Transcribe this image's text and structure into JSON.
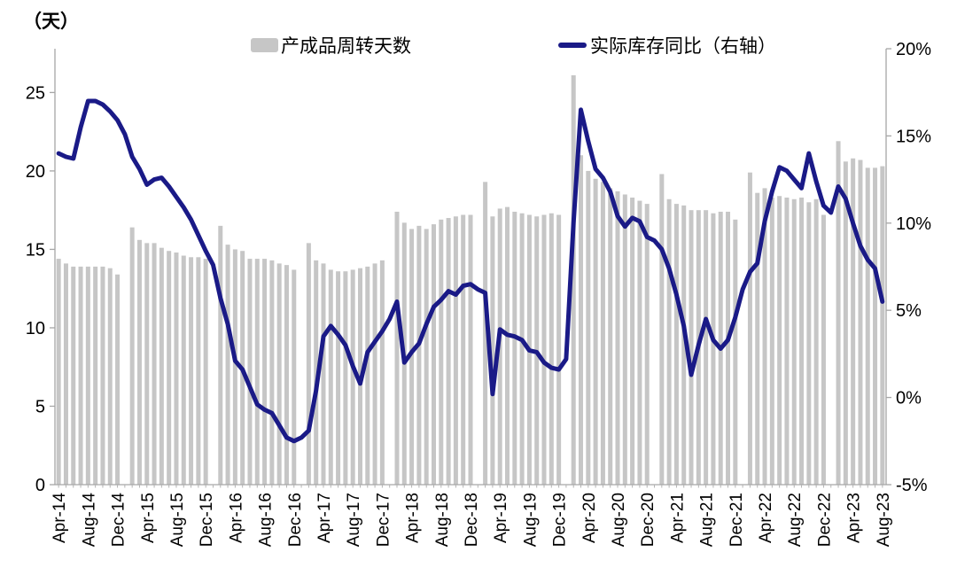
{
  "unit_label": "（天）",
  "colors": {
    "bar": "#c6c6c6",
    "line": "#1a1a87",
    "axis": "#a6a6a6",
    "text": "#000000"
  },
  "legend": [
    {
      "label": "产成品周转天数",
      "type": "bar",
      "color": "#c6c6c6"
    },
    {
      "label": "实际库存同比（右轴）",
      "type": "line",
      "color": "#1a1a87"
    }
  ],
  "chart_data": {
    "type": "bar+line combo, dual axis",
    "x_tick_every": 4,
    "left_axis": {
      "title": "（天）",
      "range": [
        0,
        27.8
      ],
      "ticks": [
        {
          "value": 0,
          "label": "0"
        },
        {
          "value": 5,
          "label": "5"
        },
        {
          "value": 10,
          "label": "10"
        },
        {
          "value": 15,
          "label": "15"
        },
        {
          "value": 20,
          "label": "20"
        },
        {
          "value": 25,
          "label": "25"
        }
      ]
    },
    "right_axis": {
      "range": [
        -5,
        20
      ],
      "ticks": [
        {
          "value": 20,
          "label": "20%"
        },
        {
          "value": 15,
          "label": "15%"
        },
        {
          "value": 10,
          "label": "10%"
        },
        {
          "value": 5,
          "label": "5%"
        },
        {
          "value": 0,
          "label": "0%"
        },
        {
          "value": -5,
          "label": "-5%"
        }
      ]
    },
    "months": [
      "Apr-14",
      "May-14",
      "Jun-14",
      "Jul-14",
      "Aug-14",
      "Sep-14",
      "Oct-14",
      "Nov-14",
      "Dec-14",
      "Jan-15",
      "Feb-15",
      "Mar-15",
      "Apr-15",
      "May-15",
      "Jun-15",
      "Jul-15",
      "Aug-15",
      "Sep-15",
      "Oct-15",
      "Nov-15",
      "Dec-15",
      "Jan-16",
      "Feb-16",
      "Mar-16",
      "Apr-16",
      "May-16",
      "Jun-16",
      "Jul-16",
      "Aug-16",
      "Sep-16",
      "Oct-16",
      "Nov-16",
      "Dec-16",
      "Jan-17",
      "Feb-17",
      "Mar-17",
      "Apr-17",
      "May-17",
      "Jun-17",
      "Jul-17",
      "Aug-17",
      "Sep-17",
      "Oct-17",
      "Nov-17",
      "Dec-17",
      "Jan-18",
      "Feb-18",
      "Mar-18",
      "Apr-18",
      "May-18",
      "Jun-18",
      "Jul-18",
      "Aug-18",
      "Sep-18",
      "Oct-18",
      "Nov-18",
      "Dec-18",
      "Jan-19",
      "Feb-19",
      "Mar-19",
      "Apr-19",
      "May-19",
      "Jun-19",
      "Jul-19",
      "Aug-19",
      "Sep-19",
      "Oct-19",
      "Nov-19",
      "Dec-19",
      "Jan-20",
      "Feb-20",
      "Mar-20",
      "Apr-20",
      "May-20",
      "Jun-20",
      "Jul-20",
      "Aug-20",
      "Sep-20",
      "Oct-20",
      "Nov-20",
      "Dec-20",
      "Jan-21",
      "Feb-21",
      "Mar-21",
      "Apr-21",
      "May-21",
      "Jun-21",
      "Jul-21",
      "Aug-21",
      "Sep-21",
      "Oct-21",
      "Nov-21",
      "Dec-21",
      "Jan-22",
      "Feb-22",
      "Mar-22",
      "Apr-22",
      "May-22",
      "Jun-22",
      "Jul-22",
      "Aug-22",
      "Sep-22",
      "Oct-22",
      "Nov-22",
      "Dec-22",
      "Jan-23",
      "Feb-23",
      "Mar-23",
      "Apr-23",
      "May-23",
      "Jun-23",
      "Jul-23",
      "Aug-23"
    ],
    "series": [
      {
        "name": "产成品周转天数",
        "type": "bar",
        "axis": "left",
        "unit": "天",
        "color": "#c6c6c6",
        "values": [
          14.4,
          14.1,
          13.9,
          13.9,
          13.9,
          13.9,
          13.9,
          13.8,
          13.4,
          null,
          16.4,
          15.6,
          15.4,
          15.4,
          15.1,
          14.9,
          14.8,
          14.6,
          14.5,
          14.5,
          14.4,
          null,
          16.5,
          15.3,
          15.0,
          14.9,
          14.4,
          14.4,
          14.4,
          14.3,
          14.1,
          14.0,
          13.7,
          null,
          15.4,
          14.3,
          14.1,
          13.7,
          13.6,
          13.6,
          13.7,
          13.8,
          13.9,
          14.1,
          14.3,
          null,
          17.4,
          16.7,
          16.3,
          16.5,
          16.3,
          16.6,
          16.9,
          17.0,
          17.1,
          17.2,
          17.2,
          null,
          19.3,
          17.1,
          17.6,
          17.7,
          17.4,
          17.3,
          17.2,
          17.1,
          17.2,
          17.3,
          17.2,
          null,
          26.1,
          21.0,
          20.0,
          19.5,
          19.3,
          18.9,
          18.7,
          18.5,
          18.3,
          18.1,
          17.9,
          null,
          19.8,
          18.2,
          17.9,
          17.8,
          17.5,
          17.5,
          17.5,
          17.3,
          17.4,
          17.4,
          16.9,
          null,
          19.9,
          18.6,
          18.9,
          18.3,
          18.4,
          18.3,
          18.2,
          18.3,
          18.0,
          18.2,
          17.2,
          null,
          21.9,
          20.6,
          20.8,
          20.7,
          20.2,
          20.2,
          20.3
        ]
      },
      {
        "name": "实际库存同比（右轴）",
        "type": "line",
        "axis": "right",
        "unit": "%",
        "color": "#1a1a87",
        "values": [
          14.0,
          13.8,
          13.7,
          15.5,
          17.0,
          17.0,
          16.8,
          16.4,
          15.9,
          15.1,
          13.8,
          13.1,
          12.2,
          12.5,
          12.6,
          12.1,
          11.5,
          10.9,
          10.2,
          9.3,
          8.4,
          7.6,
          5.7,
          4.2,
          2.1,
          1.6,
          0.6,
          -0.4,
          -0.7,
          -0.9,
          -1.6,
          -2.3,
          -2.5,
          -2.3,
          -1.9,
          0.4,
          3.5,
          4.1,
          3.6,
          3.0,
          1.8,
          0.8,
          2.6,
          3.2,
          3.8,
          4.5,
          5.5,
          2.0,
          2.6,
          3.1,
          4.2,
          5.2,
          5.6,
          6.1,
          5.9,
          6.4,
          6.5,
          6.2,
          6.0,
          0.2,
          3.9,
          3.6,
          3.5,
          3.3,
          2.7,
          2.6,
          2.0,
          1.7,
          1.6,
          2.2,
          10.0,
          16.5,
          14.7,
          13.1,
          12.6,
          11.8,
          10.4,
          9.8,
          10.3,
          10.1,
          9.2,
          9.0,
          8.5,
          7.4,
          5.9,
          4.1,
          1.3,
          3.0,
          4.5,
          3.3,
          2.8,
          3.3,
          4.6,
          6.2,
          7.2,
          7.7,
          10.1,
          11.8,
          13.2,
          13.0,
          12.5,
          12.0,
          14.0,
          12.4,
          11.0,
          10.6,
          12.1,
          11.4,
          10.0,
          8.7,
          7.9,
          7.4,
          5.5
        ]
      }
    ]
  }
}
